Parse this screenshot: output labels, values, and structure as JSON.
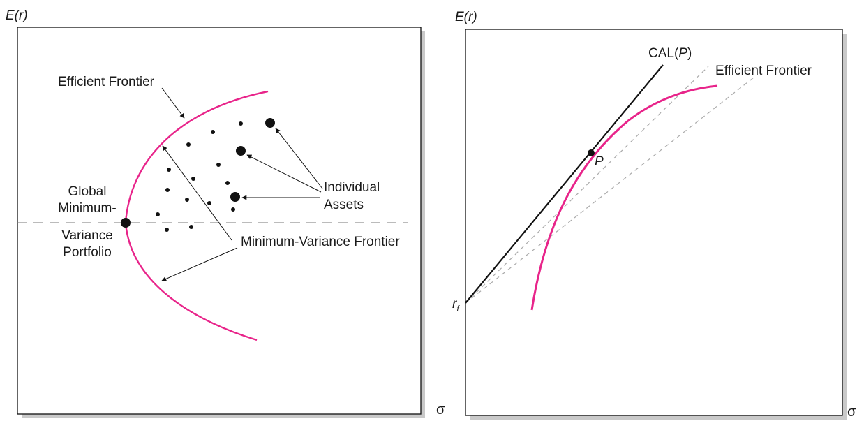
{
  "left_panel": {
    "y_axis_label": "E(r)",
    "x_axis_label": "σ",
    "labels": {
      "efficient_frontier": "Efficient Frontier",
      "global_minimum_variance_portfolio": [
        "Global",
        "Minimum-",
        "Variance",
        "Portfolio"
      ],
      "individual_assets": [
        "Individual",
        "Assets"
      ],
      "minimum_variance_frontier": "Minimum-Variance Frontier"
    },
    "colors": {
      "frontier": "#e8248a",
      "ink": "#111111",
      "dashed": "#777777"
    }
  },
  "right_panel": {
    "y_axis_label": "E(r)",
    "x_axis_label": "σ",
    "labels": {
      "cal_prefix": "CAL(",
      "cal_p": "P",
      "cal_suffix": ")",
      "efficient_frontier": "Efficient Frontier",
      "point_p": "P",
      "rf_main": "r",
      "rf_sub": "f"
    },
    "colors": {
      "frontier": "#e8248a",
      "cal": "#111111",
      "dashed": "#aaaaaa"
    }
  }
}
